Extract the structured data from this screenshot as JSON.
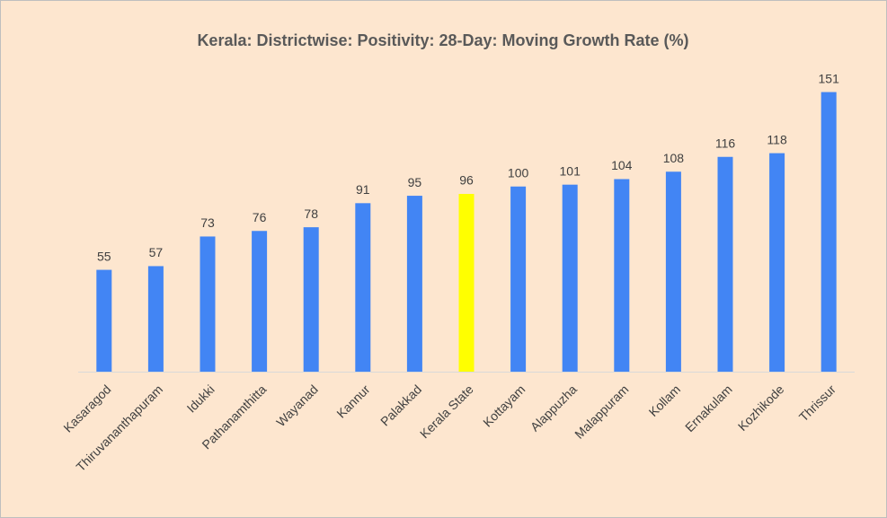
{
  "chart_data": {
    "type": "bar",
    "title": "Kerala: Districtwise: Positivity: 28-Day: Moving Growth Rate (%)",
    "categories": [
      "Kasaragod",
      "Thiruvananthapuram",
      "Idukki",
      "Pathanamthitta",
      "Wayanad",
      "Kannur",
      "Palakkad",
      "Kerala State",
      "Kottayam",
      "Alappuzha",
      "Malappuram",
      "Kollam",
      "Ernakulam",
      "Kozhikode",
      "Thrissur"
    ],
    "values": [
      55,
      57,
      73,
      76,
      78,
      91,
      95,
      96,
      100,
      101,
      104,
      108,
      116,
      118,
      151
    ],
    "colors": [
      "#4285f4",
      "#4285f4",
      "#4285f4",
      "#4285f4",
      "#4285f4",
      "#4285f4",
      "#4285f4",
      "#ffff00",
      "#4285f4",
      "#4285f4",
      "#4285f4",
      "#4285f4",
      "#4285f4",
      "#4285f4",
      "#4285f4"
    ],
    "ylim": [
      0,
      160
    ]
  }
}
